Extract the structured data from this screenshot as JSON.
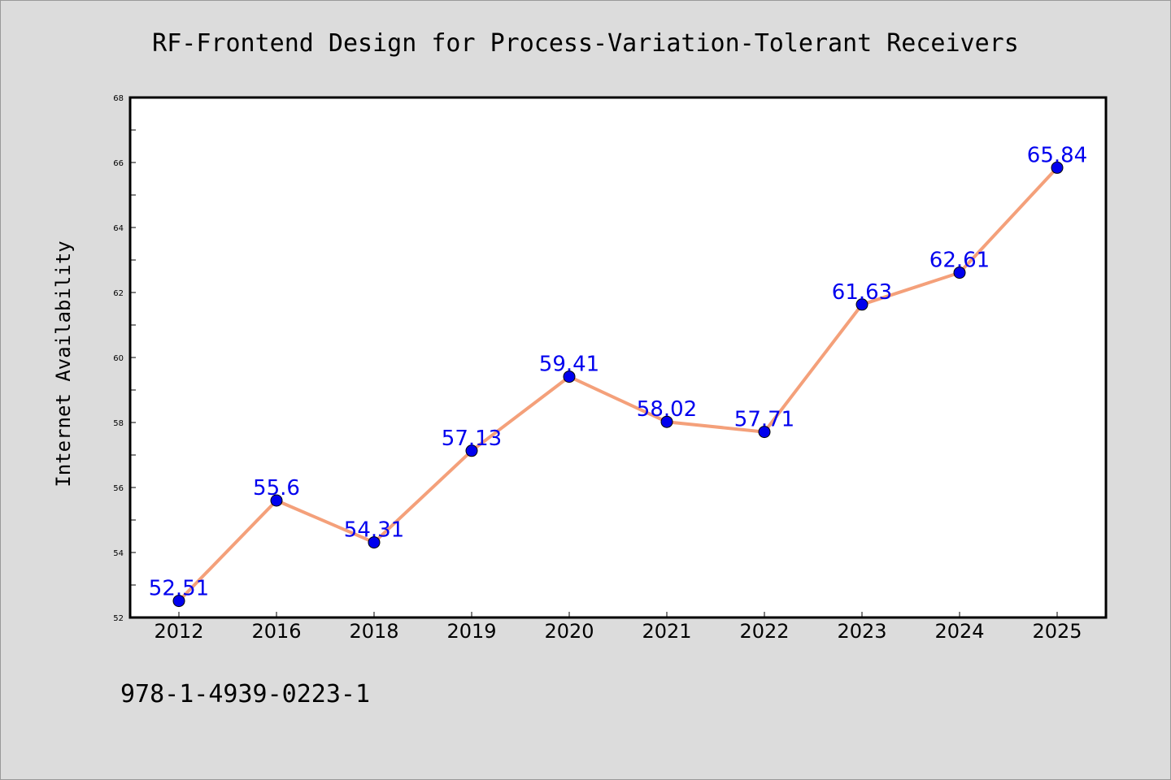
{
  "chart_data": {
    "type": "line",
    "title": "RF-Frontend Design for Process-Variation-Tolerant Receivers",
    "xlabel": "",
    "ylabel": "Internet Availability",
    "footer": "978-1-4939-0223-1",
    "categories": [
      "2012",
      "2016",
      "2018",
      "2019",
      "2020",
      "2021",
      "2022",
      "2023",
      "2024",
      "2025"
    ],
    "series": [
      {
        "values": [
          52.51,
          55.6,
          54.31,
          57.13,
          59.41,
          58.02,
          57.71,
          61.63,
          62.61,
          65.84
        ],
        "labels": [
          "52.51",
          "55.6",
          "54.31",
          "57.13",
          "59.41",
          "58.02",
          "57.71",
          "61.63",
          "62.61",
          "65.84"
        ],
        "line_color": "#f4a07a",
        "marker_color": "#0000ee",
        "label_color": "#0000ee"
      }
    ],
    "ylim": [
      52,
      68
    ],
    "yticks": [
      52,
      54,
      56,
      58,
      60,
      62,
      64,
      66,
      68
    ],
    "grid": false,
    "legend": "none"
  }
}
